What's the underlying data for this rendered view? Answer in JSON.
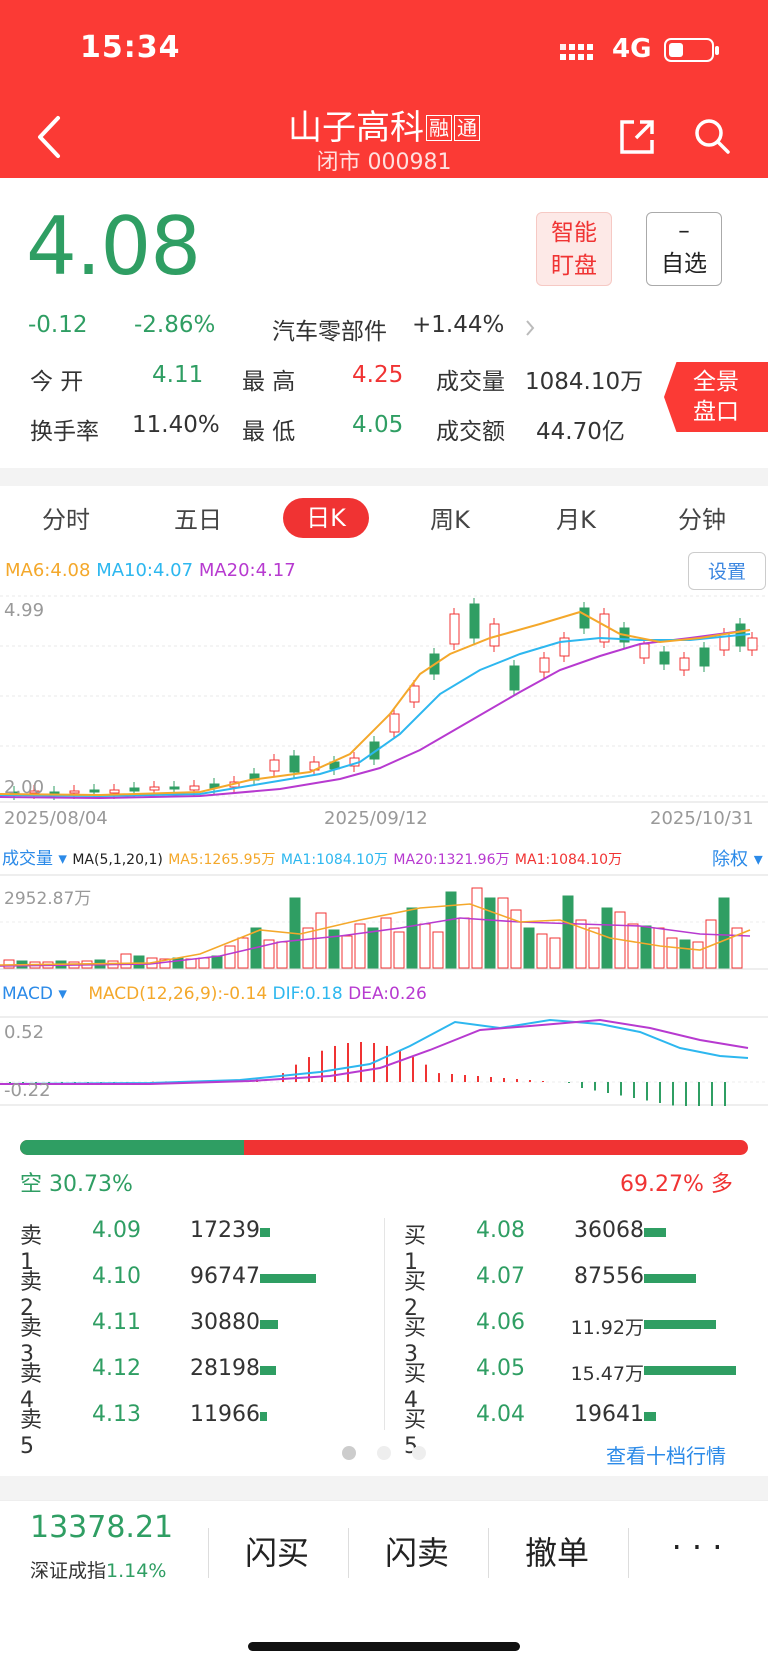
{
  "status": {
    "time": "15:34",
    "network": "4G"
  },
  "header": {
    "name": "山子高科",
    "tags": [
      "融",
      "通"
    ],
    "sub": "闭市 000981"
  },
  "quote": {
    "price": "4.08",
    "change": "-0.12",
    "change_pct": "-2.86%",
    "sector": "汽车零部件",
    "sector_pct": "+1.44%",
    "smart_label_1": "智能",
    "smart_label_2": "盯盘",
    "watch_label_1": "–",
    "watch_label_2": "自选",
    "open_label": "今  开",
    "open": "4.11",
    "high_label": "最  高",
    "high": "4.25",
    "volume_label": "成交量",
    "volume": "1084.10万",
    "turnover_label": "换手率",
    "turnover": "11.40%",
    "low_label": "最  低",
    "low": "4.05",
    "amount_label": "成交额",
    "amount": "44.70亿",
    "panel_label_1": "全景",
    "panel_label_2": "盘口"
  },
  "tabs": [
    "分时",
    "五日",
    "日K",
    "周K",
    "月K",
    "分钟"
  ],
  "kline": {
    "ma6": "MA6:4.08",
    "ma10": "MA10:4.07",
    "ma20": "MA20:4.17",
    "settings": "设置",
    "ymax": "4.99",
    "ymin": "2.00",
    "dates": [
      "2025/08/04",
      "2025/09/12",
      "2025/10/31"
    ]
  },
  "volume": {
    "label": "成交量",
    "params": "MA(5,1,20,1)",
    "ma5": "MA5:1265.95万",
    "ma1": "MA1:1084.10万",
    "ma20": "MA20:1321.96万",
    "ma1b": "MA1:1084.10万",
    "adjust": "除权",
    "ymax": "2952.87万"
  },
  "macd": {
    "label": "MACD",
    "params": "MACD(12,26,9):-0.14",
    "dif": "DIF:0.18",
    "dea": "DEA:0.26",
    "ymax": "0.52",
    "ymin": "-0.22"
  },
  "balance": {
    "short": "空 30.73%",
    "long": "69.27% 多",
    "short_frac": 0.3073
  },
  "asks": [
    {
      "label": "卖1",
      "price": "4.09",
      "vol": "17239",
      "frac": 0.05
    },
    {
      "label": "卖2",
      "price": "4.10",
      "vol": "96747",
      "frac": 0.28
    },
    {
      "label": "卖3",
      "price": "4.11",
      "vol": "30880",
      "frac": 0.09
    },
    {
      "label": "卖4",
      "price": "4.12",
      "vol": "28198",
      "frac": 0.08
    },
    {
      "label": "卖5",
      "price": "4.13",
      "vol": "11966",
      "frac": 0.035
    }
  ],
  "bids": [
    {
      "label": "买1",
      "price": "4.08",
      "vol": "36068",
      "frac": 0.11
    },
    {
      "label": "买2",
      "price": "4.07",
      "vol": "87556",
      "frac": 0.26
    },
    {
      "label": "买3",
      "price": "4.06",
      "vol": "11.92万",
      "frac": 0.36
    },
    {
      "label": "买4",
      "price": "4.05",
      "vol": "15.47万",
      "frac": 0.46
    },
    {
      "label": "买5",
      "price": "4.04",
      "vol": "19641",
      "frac": 0.06
    }
  ],
  "more_link": "查看十档行情",
  "index": {
    "value": "13378.21",
    "name": "深证成指",
    "pct": "1.14%"
  },
  "actions": [
    "闪买",
    "闪卖",
    "撤单",
    "· · ·"
  ],
  "colors": {
    "up": "#f03333",
    "down": "#2f9e63",
    "header": "#fb3a35"
  }
}
